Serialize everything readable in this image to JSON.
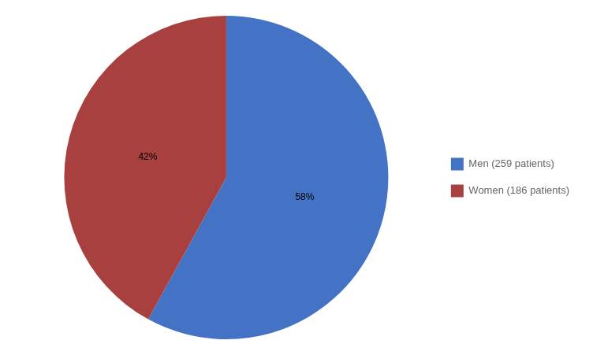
{
  "chart_data": {
    "type": "pie",
    "categories": [
      "Men (259 patients)",
      "Women (186 patients)"
    ],
    "values": [
      58,
      42
    ],
    "value_labels": [
      "58%",
      "42%"
    ],
    "colors": [
      "#4472C4",
      "#A94040"
    ],
    "data_labels": true,
    "legend": "right"
  }
}
